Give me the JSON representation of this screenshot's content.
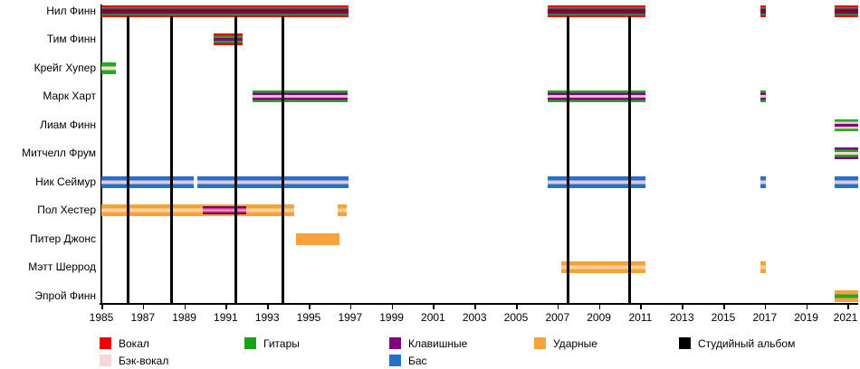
{
  "chart_data": {
    "type": "gantt-timeline",
    "description": "Band members timeline with instrument roles (striped bars) and studio album release lines",
    "x_axis": {
      "min_year": 1985,
      "max_year": 2021.5,
      "tick_years": [
        1985,
        1987,
        1989,
        1991,
        1993,
        1995,
        1997,
        1999,
        2001,
        2003,
        2005,
        2007,
        2009,
        2011,
        2013,
        2015,
        2017,
        2019,
        2021
      ]
    },
    "members": [
      {
        "name": "Нил Финн",
        "roles": [
          "Вокал",
          "Гитары",
          "Клавишные"
        ],
        "stripes": [
          "#dd0000",
          "#1faa1f",
          "#800080",
          "#8b0000",
          "#800080",
          "#1faa1f",
          "#dd0000"
        ],
        "intervals": [
          [
            1985.0,
            1996.9
          ],
          [
            2006.55,
            2011.25
          ],
          [
            2016.8,
            2017.05
          ],
          [
            2020.35,
            2021.5
          ]
        ]
      },
      {
        "name": "Тим Финн",
        "roles": [
          "Вокал",
          "Гитары",
          "Клавишные"
        ],
        "stripes": [
          "#dd0000",
          "#1faa1f",
          "#800080",
          "#1faa1f",
          "#dd0000"
        ],
        "intervals": [
          [
            1990.4,
            1991.8
          ]
        ]
      },
      {
        "name": "Крейг Хупер",
        "roles": [
          "Гитары",
          "Бэк-вокал"
        ],
        "stripes": [
          "#1faa1f",
          "#f6dcd2",
          "#1faa1f"
        ],
        "intervals": [
          [
            1985.0,
            1985.7
          ]
        ]
      },
      {
        "name": "Марк Харт",
        "roles": [
          "Гитары",
          "Клавишные",
          "Бэк-вокал"
        ],
        "stripes": [
          "#1faa1f",
          "#800080",
          "#f0b4cc",
          "#800080",
          "#1faa1f"
        ],
        "intervals": [
          [
            1992.3,
            1996.9
          ],
          [
            2006.55,
            2011.25
          ],
          [
            2016.8,
            2017.05
          ]
        ]
      },
      {
        "name": "Лиам Финн",
        "roles": [
          "Гитары",
          "Бэк-вокал",
          "Клавишные"
        ],
        "stripes": [
          "#1faa1f",
          "#f2c8ce",
          "#800080",
          "#f2c8ce",
          "#1faa1f"
        ],
        "intervals": [
          [
            2020.35,
            2021.5
          ]
        ]
      },
      {
        "name": "Митчелл Фрум",
        "roles": [
          "Клавишные",
          "Гитары",
          "Бэк-вокал"
        ],
        "stripes": [
          "#800080",
          "#1faa1f",
          "#f6d8ce",
          "#1faa1f",
          "#800080"
        ],
        "intervals": [
          [
            2020.35,
            2021.5
          ]
        ]
      },
      {
        "name": "Ник Сеймур",
        "roles": [
          "Бас",
          "Бэк-вокал"
        ],
        "stripes": [
          "#2273c8",
          "#dfc9dc",
          "#2273c8"
        ],
        "intervals": [
          [
            1985.0,
            1989.45
          ],
          [
            1989.62,
            1996.9
          ],
          [
            2006.55,
            2011.25
          ],
          [
            2016.8,
            2017.05
          ],
          [
            2020.35,
            2021.5
          ]
        ]
      },
      {
        "name": "Пол Хестер",
        "roles": [
          "Ударные",
          "Бэк-вокал"
        ],
        "stripes": [
          "#f8a23b",
          "#fbcfa0",
          "#f8a23b"
        ],
        "intervals": [
          [
            1985.0,
            1994.3
          ],
          [
            1996.4,
            1996.85
          ]
        ],
        "overlay": {
          "interval": [
            1989.9,
            1992.0
          ],
          "stripes": [
            "#70104a",
            "#d63394",
            "#f2a0c8",
            "#d63394",
            "#70104a"
          ]
        }
      },
      {
        "name": "Питер Джонс",
        "roles": [
          "Ударные"
        ],
        "stripes": [
          "#f8a23b"
        ],
        "intervals": [
          [
            1994.4,
            1996.5
          ]
        ]
      },
      {
        "name": "Мэтт Шеррод",
        "roles": [
          "Ударные",
          "Бэк-вокал"
        ],
        "stripes": [
          "#f8a23b",
          "#fbcfa0",
          "#f8a23b"
        ],
        "intervals": [
          [
            2007.2,
            2011.25
          ],
          [
            2016.8,
            2017.05
          ]
        ]
      },
      {
        "name": "Эпрой Финн",
        "roles": [
          "Ударные",
          "Гитары"
        ],
        "stripes": [
          "#f8a23b",
          "#1faa1f",
          "#f8a23b"
        ],
        "intervals": [
          [
            2020.35,
            2021.5
          ]
        ]
      }
    ],
    "albums": {
      "label": "Студийный альбом",
      "years": [
        1986.3,
        1988.4,
        1991.5,
        1993.75,
        2007.5,
        2010.5
      ]
    },
    "legend": [
      {
        "label": "Вокал",
        "color": "#ee0000",
        "col": 0,
        "row": 0
      },
      {
        "label": "Бэк-вокал",
        "color": "#f8d7dc",
        "col": 0,
        "row": 1
      },
      {
        "label": "Гитары",
        "color": "#19a319",
        "col": 1,
        "row": 0
      },
      {
        "label": "Клавишные",
        "color": "#800080",
        "col": 2,
        "row": 0
      },
      {
        "label": "Бас",
        "color": "#2273c8",
        "col": 2,
        "row": 1
      },
      {
        "label": "Ударные",
        "color": "#f8a23b",
        "col": 3,
        "row": 0
      },
      {
        "label": "Студийный альбом",
        "color": "#000000",
        "col": 4,
        "row": 0
      }
    ]
  }
}
